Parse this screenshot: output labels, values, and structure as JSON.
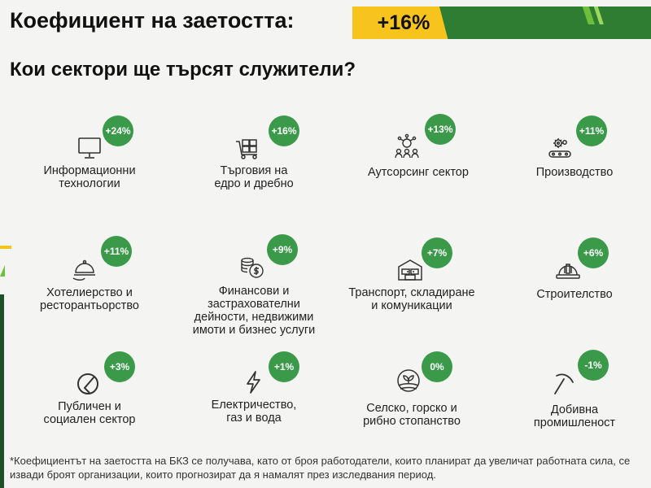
{
  "header": {
    "title": "Коефициент на заетостта:",
    "value": "+16%"
  },
  "subtitle": "Кои сектори ще търсят служители?",
  "sectors": [
    {
      "label": "Информационни\nтехнологии",
      "change": "+24%",
      "icon": "monitor-icon"
    },
    {
      "label": "Търговия на\nедро и дребно",
      "change": "+16%",
      "icon": "warehouse-cart-icon"
    },
    {
      "label": "Аутсорсинг сектор",
      "change": "+13%",
      "icon": "team-network-icon"
    },
    {
      "label": "Производство",
      "change": "+11%",
      "icon": "conveyor-gear-icon"
    },
    {
      "label": "Хотелиерство и\nресторантьорство",
      "change": "+11%",
      "icon": "cloche-icon"
    },
    {
      "label": "Финансови и\nзастрахователни\nдейности, недвижими\nимоти и бизнес услуги",
      "change": "+9%",
      "icon": "coins-icon"
    },
    {
      "label": "Транспорт, складиране\nи комуникации",
      "change": "+7%",
      "icon": "storage-building-icon"
    },
    {
      "label": "Строителство",
      "change": "+6%",
      "icon": "hard-hat-icon"
    },
    {
      "label": "Публичен и\nсоциален сектор",
      "change": "+3%",
      "icon": "public-sector-icon"
    },
    {
      "label": "Електричество,\nгаз и вода",
      "change": "+1%",
      "icon": "lightning-icon"
    },
    {
      "label": "Селско, горско и\nрибно стопанство",
      "change": "0%",
      "icon": "farm-field-icon"
    },
    {
      "label": "Добивна\nпромишленост",
      "change": "-1%",
      "icon": "pickaxe-icon"
    }
  ],
  "footnote": "*Коефициентът на заетостта на БКЗ се получава, като от броя работодатели, които планират да увеличат работната сила, се извади броят организации, които прогнозират да я намалят през изследвания период.",
  "colors": {
    "accent_yellow": "#f6c41c",
    "accent_green": "#2e7d32",
    "badge_green": "#3a9a4a"
  }
}
